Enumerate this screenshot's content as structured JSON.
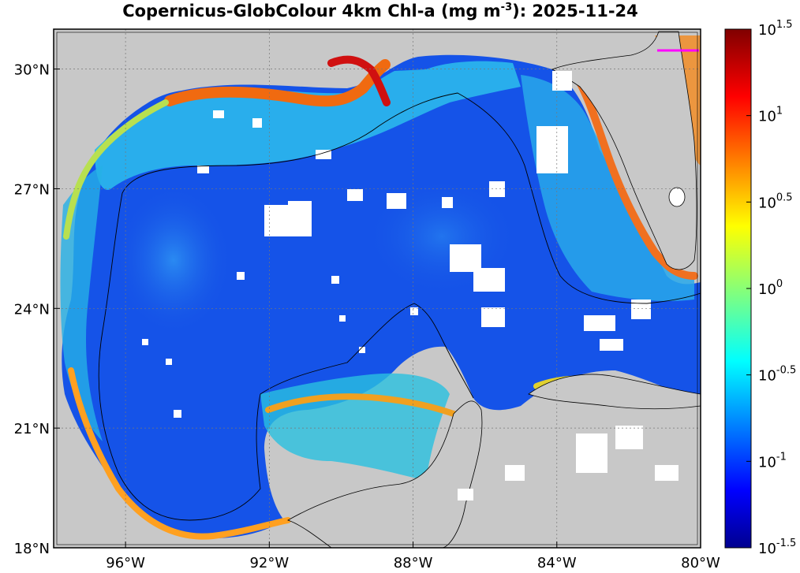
{
  "title": {
    "prefix": "Copernicus-GlobColour 4km Chl-a (mg m",
    "superscript": "-3",
    "suffix": "): 2025-11-24"
  },
  "map": {
    "projection": "equirectangular",
    "lon_range": [
      -98,
      -80
    ],
    "lat_range": [
      18,
      31
    ],
    "land_color": "#c8c8c8",
    "grid": "dotted",
    "lon_ticks": [
      {
        "value": -96,
        "label": "96°W"
      },
      {
        "value": -92,
        "label": "92°W"
      },
      {
        "value": -88,
        "label": "88°W"
      },
      {
        "value": -84,
        "label": "84°W"
      },
      {
        "value": -80,
        "label": "80°W"
      }
    ],
    "lat_ticks": [
      {
        "value": 30,
        "label": "30°N"
      },
      {
        "value": 27,
        "label": "27°N"
      },
      {
        "value": 24,
        "label": "24°N"
      },
      {
        "value": 21,
        "label": "21°N"
      },
      {
        "value": 18,
        "label": "18°N"
      }
    ]
  },
  "colorbar": {
    "scale": "log10",
    "colormap": "jet",
    "range_log10": [
      -1.5,
      1.5
    ],
    "ticks": [
      {
        "value": 1.5,
        "base": "10",
        "exp": "1.5"
      },
      {
        "value": 1.0,
        "base": "10",
        "exp": "1"
      },
      {
        "value": 0.5,
        "base": "10",
        "exp": "0.5"
      },
      {
        "value": 0.0,
        "base": "10",
        "exp": "0"
      },
      {
        "value": -0.5,
        "base": "10",
        "exp": "-0.5"
      },
      {
        "value": -1.0,
        "base": "10",
        "exp": "-1"
      },
      {
        "value": -1.5,
        "base": "10",
        "exp": "-1.5"
      }
    ]
  },
  "colors": {
    "ocean_low": "#1040e0",
    "ocean_mid": "#1a6ef0",
    "shelf": "#2fc8e8",
    "coastal_high": "#ff8a00",
    "estuary": "#d40000",
    "cloud_mask": "#ffffff",
    "track": "#ff00ff"
  }
}
